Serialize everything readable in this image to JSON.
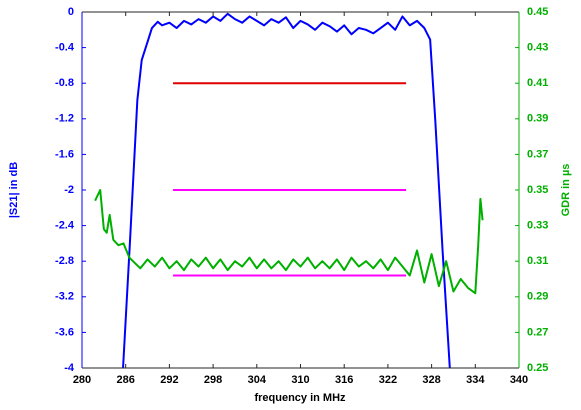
{
  "chart_data": {
    "type": "line",
    "xlabel": "frequency in MHz",
    "ylabel": "|S21| in dB",
    "y2label": "GDR in µs",
    "xlim": [
      280,
      340
    ],
    "xticks": [
      280,
      286,
      292,
      298,
      304,
      310,
      316,
      322,
      328,
      334,
      340
    ],
    "ylim": [
      -4,
      0
    ],
    "yticks": [
      0,
      -0.4,
      -0.8,
      -1.2,
      -1.6,
      -2,
      -2.4,
      -2.8,
      -3.2,
      -3.6,
      -4
    ],
    "y2lim": [
      0.25,
      0.45
    ],
    "y2ticks": [
      0.25,
      0.27,
      0.29,
      0.31,
      0.33,
      0.35,
      0.37,
      0.39,
      0.41,
      0.43,
      0.45
    ],
    "ycolor": "#0000ff",
    "y2color": "#00b000",
    "series": [
      {
        "color": "#0000ff",
        "x": [
          285.3,
          286.6,
          287.6,
          288.2,
          289.1,
          289.6,
          290.4,
          291,
          292,
          293,
          294,
          295,
          296,
          297,
          298,
          299,
          300,
          301,
          302,
          303,
          304,
          305,
          306,
          307,
          308,
          309,
          310,
          311,
          312,
          313,
          314,
          315,
          316,
          317,
          318,
          319,
          320,
          321,
          322,
          323,
          324,
          325,
          326,
          327,
          327.8,
          328.5,
          329.5,
          330.5,
          331
        ],
        "values": [
          -4.5,
          -2.56,
          -0.99,
          -0.54,
          -0.31,
          -0.18,
          -0.11,
          -0.15,
          -0.12,
          -0.18,
          -0.1,
          -0.14,
          -0.08,
          -0.12,
          -0.05,
          -0.1,
          -0.02,
          -0.08,
          -0.12,
          -0.05,
          -0.1,
          -0.15,
          -0.08,
          -0.12,
          -0.06,
          -0.18,
          -0.1,
          -0.14,
          -0.2,
          -0.12,
          -0.16,
          -0.22,
          -0.15,
          -0.25,
          -0.18,
          -0.2,
          -0.24,
          -0.18,
          -0.12,
          -0.2,
          -0.05,
          -0.15,
          -0.1,
          -0.18,
          -0.31,
          -1.21,
          -2.67,
          -4,
          -4.5
        ]
      },
      {
        "color": "#00b000",
        "axis": "y2",
        "x": [
          281.8,
          282.5,
          283,
          283.4,
          283.8,
          284.3,
          285,
          285.7,
          286.5,
          287,
          288,
          289,
          290,
          291,
          292,
          293,
          294,
          295,
          296,
          297,
          298,
          299,
          300,
          301,
          302,
          303,
          304,
          305,
          306,
          307,
          308,
          309,
          310,
          311,
          312,
          313,
          314,
          315,
          316,
          317,
          318,
          319,
          320,
          321,
          322,
          323,
          324,
          325,
          326,
          327,
          328,
          329,
          330,
          331,
          332,
          333,
          334,
          334.4,
          334.7,
          335
        ],
        "values": [
          0.344,
          0.35,
          0.328,
          0.326,
          0.336,
          0.322,
          0.319,
          0.32,
          0.312,
          0.31,
          0.306,
          0.311,
          0.307,
          0.312,
          0.306,
          0.31,
          0.305,
          0.311,
          0.307,
          0.312,
          0.306,
          0.311,
          0.305,
          0.31,
          0.307,
          0.312,
          0.306,
          0.311,
          0.306,
          0.31,
          0.305,
          0.311,
          0.307,
          0.312,
          0.306,
          0.31,
          0.306,
          0.311,
          0.305,
          0.312,
          0.307,
          0.31,
          0.306,
          0.311,
          0.305,
          0.312,
          0.307,
          0.302,
          0.316,
          0.298,
          0.314,
          0.296,
          0.31,
          0.293,
          0.3,
          0.295,
          0.292,
          0.319,
          0.345,
          0.333
        ]
      },
      {
        "color": "#e00000",
        "x": [
          292.5,
          324.5
        ],
        "values": [
          -0.8,
          -0.8
        ]
      },
      {
        "color": "#ff00ff",
        "axis": "y2",
        "x": [
          292.5,
          324.5
        ],
        "values": [
          0.35,
          0.35
        ]
      },
      {
        "color": "#ff00ff",
        "axis": "y2",
        "x": [
          292.5,
          324.5
        ],
        "values": [
          0.302,
          0.302
        ]
      }
    ]
  }
}
